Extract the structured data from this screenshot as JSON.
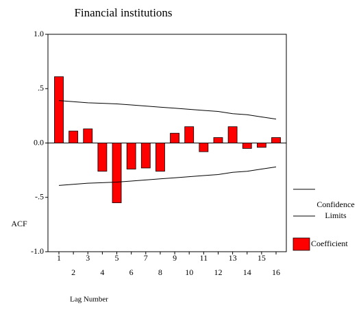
{
  "chart_data": {
    "type": "bar",
    "title": "Financial institutions",
    "ylabel": "ACF",
    "xlabel": "Lag Number",
    "categories": [
      "1",
      "2",
      "3",
      "4",
      "5",
      "6",
      "7",
      "8",
      "9",
      "10",
      "11",
      "12",
      "13",
      "14",
      "15",
      "16"
    ],
    "ylim": [
      -1,
      1
    ],
    "yticks": [
      {
        "value": -1,
        "label": "-1.0"
      },
      {
        "value": -0.5,
        "label": "-.5"
      },
      {
        "value": 0,
        "label": "0.0"
      },
      {
        "value": 0.5,
        "label": ".5"
      },
      {
        "value": 1,
        "label": "1.0"
      }
    ],
    "series": [
      {
        "name": "Coefficient",
        "type": "bar",
        "color": "#ff0000",
        "values": [
          0.61,
          0.11,
          0.13,
          -0.26,
          -0.55,
          -0.24,
          -0.23,
          -0.26,
          0.09,
          0.15,
          -0.08,
          0.05,
          0.15,
          -0.05,
          -0.04,
          0.05
        ]
      },
      {
        "name": "Confidence Limits",
        "type": "line",
        "color": "#000000",
        "upper": [
          0.39,
          0.38,
          0.37,
          0.365,
          0.36,
          0.35,
          0.34,
          0.33,
          0.32,
          0.31,
          0.3,
          0.29,
          0.27,
          0.26,
          0.24,
          0.22
        ],
        "lower": [
          -0.39,
          -0.38,
          -0.37,
          -0.365,
          -0.36,
          -0.35,
          -0.34,
          -0.33,
          -0.32,
          -0.31,
          -0.3,
          -0.29,
          -0.27,
          -0.26,
          -0.24,
          -0.22
        ]
      }
    ]
  }
}
